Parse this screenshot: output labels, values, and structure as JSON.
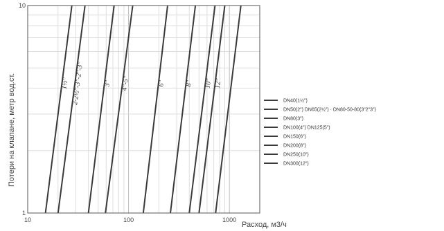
{
  "chart_data": {
    "type": "line",
    "title": "",
    "xlabel": "Расход, м3/ч",
    "ylabel": "Потери на клапане, метр вод.ст.",
    "x_scale": "log",
    "y_scale": "log",
    "xlim": [
      10,
      2000
    ],
    "ylim": [
      1,
      10
    ],
    "x_ticks": [
      "10",
      "100",
      "1000"
    ],
    "y_ticks": [
      "1",
      "10"
    ],
    "grid": true,
    "legend_position": "right",
    "series": [
      {
        "name": "DN40(1½\")",
        "label": "1½\"",
        "x": [
          15,
          27.4
        ],
        "y": [
          1,
          10
        ]
      },
      {
        "name": "DN50(2\") DN65(2½\") · DN80-50-80(3\"2\"3\")",
        "label": "2-2½\"-3\"-2\"-3\"",
        "x": [
          20,
          37
        ],
        "y": [
          1,
          10
        ]
      },
      {
        "name": "DN80(3\")",
        "label": "3\"",
        "x": [
          40,
          71.9
        ],
        "y": [
          1,
          10
        ]
      },
      {
        "name": "DN100(4\") DN125(5\")",
        "label": "4\"-5\"",
        "x": [
          59,
          110
        ],
        "y": [
          1,
          10
        ]
      },
      {
        "name": "DN150(6\")",
        "label": "6\"",
        "x": [
          140,
          244
        ],
        "y": [
          1,
          10
        ]
      },
      {
        "name": "DN200(8\")",
        "label": "8\"",
        "x": [
          260,
          460
        ],
        "y": [
          1,
          10
        ]
      },
      {
        "name": "DN250(10\")",
        "label": "10\"",
        "x": [
          400,
          720
        ],
        "y": [
          1,
          10
        ]
      },
      {
        "name": "DN300(12\")",
        "label": "12\"",
        "x": [
          500,
          900
        ],
        "y": [
          1,
          10
        ]
      },
      {
        "name": "",
        "label": "",
        "x": [
          730,
          1300
        ],
        "y": [
          1,
          10
        ]
      }
    ]
  }
}
